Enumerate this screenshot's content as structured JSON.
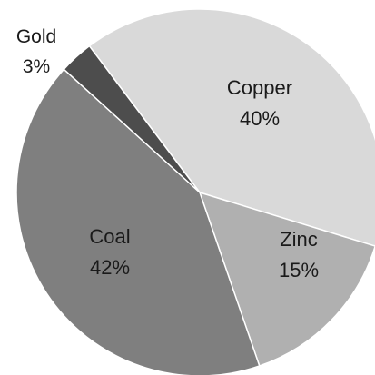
{
  "chart_data": {
    "type": "pie",
    "title": "",
    "start_angle_deg": 233,
    "direction": "clockwise",
    "slices": [
      {
        "name": "Copper",
        "value": 40,
        "label": "40%",
        "color": "#d9d9d9"
      },
      {
        "name": "Zinc",
        "value": 15,
        "label": "15%",
        "color": "#b0b0b0"
      },
      {
        "name": "Coal",
        "value": 42,
        "label": "42%",
        "color": "#7f7f7f"
      },
      {
        "name": "Gold",
        "value": 3,
        "label": "3%",
        "color": "#4d4d4d"
      }
    ]
  }
}
